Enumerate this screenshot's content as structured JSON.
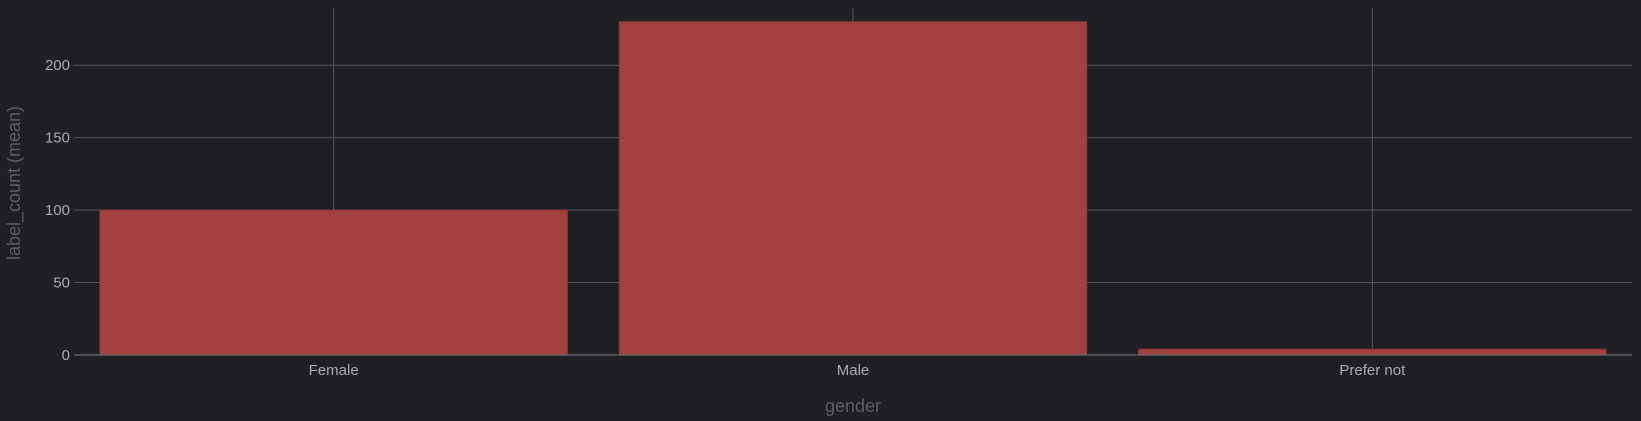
{
  "chart_data": {
    "type": "bar",
    "categories": [
      "Female",
      "Male",
      "Prefer not"
    ],
    "values": [
      100,
      230,
      4
    ],
    "xlabel": "gender",
    "ylabel": "label_count (mean)",
    "ylim": [
      0,
      240
    ],
    "yticks": [
      0,
      50,
      100,
      150,
      200
    ],
    "grid": true,
    "colors": {
      "bar": "#a34040",
      "background": "#1f2024",
      "grid": "#55575c"
    }
  }
}
